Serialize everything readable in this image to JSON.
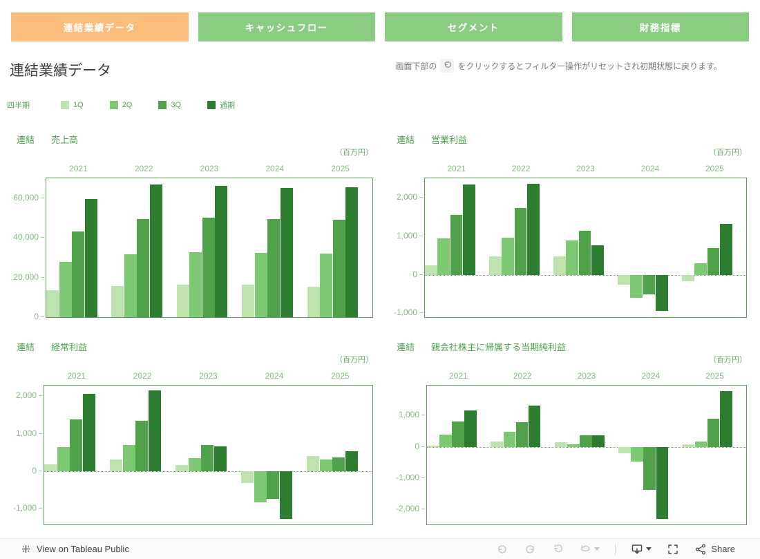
{
  "tabs": [
    {
      "label": "連結業績データ",
      "active": true
    },
    {
      "label": "キャッシュフロー",
      "active": false
    },
    {
      "label": "セグメント",
      "active": false
    },
    {
      "label": "財務指標",
      "active": false
    }
  ],
  "page": {
    "title": "連結業績データ"
  },
  "note": {
    "prefix": "画面下部の",
    "suffix": "をクリックするとフィルター操作がリセットされ初期状態に戻ります。"
  },
  "legend": {
    "title": "四半期",
    "items": [
      {
        "label": "1Q",
        "color": "#bee3af"
      },
      {
        "label": "2Q",
        "color": "#7dc873"
      },
      {
        "label": "3Q",
        "color": "#4fa14a"
      },
      {
        "label": "通期",
        "color": "#2c7d30"
      }
    ]
  },
  "colors": {
    "tab_active": "#fcbd7c",
    "tab_inactive": "#8bcc83",
    "chart_text": "#4da14d",
    "axis_text": "#84bd7d",
    "plot_border": "#5a9c5a"
  },
  "chart_data": [
    {
      "type": "bar",
      "title_prefix": "連結",
      "title": "売上高",
      "unit": "（百万円）",
      "categories": [
        "2021",
        "2022",
        "2023",
        "2024",
        "2025"
      ],
      "series": [
        {
          "name": "1Q",
          "values": [
            13500,
            15600,
            16200,
            16200,
            15300
          ]
        },
        {
          "name": "2Q",
          "values": [
            27800,
            31600,
            32900,
            32500,
            32100
          ]
        },
        {
          "name": "3Q",
          "values": [
            43300,
            49300,
            50200,
            49500,
            49100
          ]
        },
        {
          "name": "通期",
          "values": [
            59400,
            66800,
            66000,
            65200,
            65500
          ]
        }
      ],
      "ylim": [
        0,
        70000
      ],
      "yticks": [
        {
          "v": 0,
          "label": "0"
        },
        {
          "v": 20000,
          "label": "20,000"
        },
        {
          "v": 40000,
          "label": "40,000"
        },
        {
          "v": 60000,
          "label": "60,000"
        }
      ]
    },
    {
      "type": "bar",
      "title_prefix": "連結",
      "title": "営業利益",
      "unit": "（百万円）",
      "categories": [
        "2021",
        "2022",
        "2023",
        "2024",
        "2025"
      ],
      "series": [
        {
          "name": "1Q",
          "values": [
            240,
            470,
            470,
            -250,
            -160
          ]
        },
        {
          "name": "2Q",
          "values": [
            950,
            960,
            890,
            -590,
            300
          ]
        },
        {
          "name": "3Q",
          "values": [
            1550,
            1730,
            1130,
            -510,
            700
          ]
        },
        {
          "name": "通期",
          "values": [
            2340,
            2360,
            770,
            -940,
            1310
          ]
        }
      ],
      "ylim": [
        -1100,
        2500
      ],
      "yticks": [
        {
          "v": -1000,
          "label": "-1,000"
        },
        {
          "v": 0,
          "label": "0"
        },
        {
          "v": 1000,
          "label": "1,000"
        },
        {
          "v": 2000,
          "label": "2,000"
        }
      ]
    },
    {
      "type": "bar",
      "title_prefix": "連結",
      "title": "経常利益",
      "unit": "（百万円）",
      "categories": [
        "2021",
        "2022",
        "2023",
        "2024",
        "2025"
      ],
      "series": [
        {
          "name": "1Q",
          "values": [
            190,
            310,
            160,
            -310,
            400
          ]
        },
        {
          "name": "2Q",
          "values": [
            650,
            700,
            340,
            -840,
            310
          ]
        },
        {
          "name": "3Q",
          "values": [
            1370,
            1340,
            690,
            -730,
            370
          ]
        },
        {
          "name": "通期",
          "values": [
            2050,
            2150,
            660,
            -1280,
            530
          ]
        }
      ],
      "ylim": [
        -1420,
        2280
      ],
      "yticks": [
        {
          "v": -1000,
          "label": "-1,000"
        },
        {
          "v": 0,
          "label": "0"
        },
        {
          "v": 1000,
          "label": "1,000"
        },
        {
          "v": 2000,
          "label": "2,000"
        }
      ]
    },
    {
      "type": "bar",
      "title_prefix": "連結",
      "title": "親会社株主に帰属する当期純利益",
      "unit": "（百万円）",
      "categories": [
        "2021",
        "2022",
        "2023",
        "2024",
        "2025"
      ],
      "series": [
        {
          "name": "1Q",
          "values": [
            40,
            160,
            140,
            -200,
            90
          ]
        },
        {
          "name": "2Q",
          "values": [
            390,
            490,
            90,
            -480,
            180
          ]
        },
        {
          "name": "3Q",
          "values": [
            820,
            780,
            360,
            -1380,
            890
          ]
        },
        {
          "name": "通期",
          "values": [
            1170,
            1310,
            380,
            -2310,
            1790
          ]
        }
      ],
      "ylim": [
        -2480,
        1960
      ],
      "yticks": [
        {
          "v": -2000,
          "label": "-2,000"
        },
        {
          "v": -1000,
          "label": "-1,000"
        },
        {
          "v": 0,
          "label": "0"
        },
        {
          "v": 1000,
          "label": "1,000"
        }
      ]
    }
  ],
  "footer": {
    "view_on": "View on Tableau Public",
    "share": "Share"
  }
}
